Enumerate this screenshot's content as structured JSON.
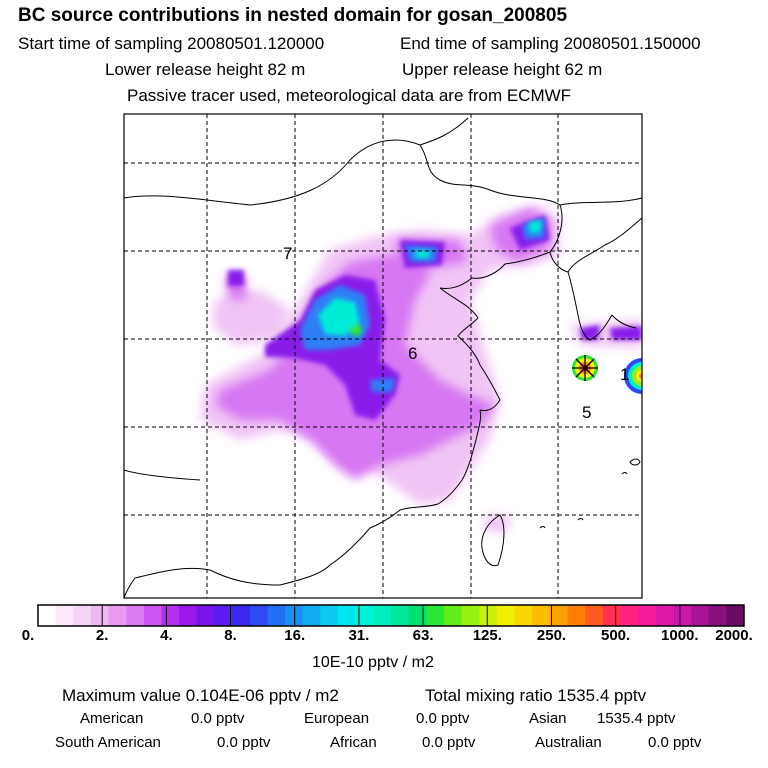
{
  "header": {
    "title": "BC  source contributions in nested domain for gosan_200805",
    "start_time": "Start time of sampling 20080501.120000",
    "end_time": "End time of sampling 20080501.150000",
    "lower_height": "Lower release height   82 m",
    "upper_height": "Upper release height   62 m",
    "tracer_note": "Passive tracer used, meteorological data are from ECMWF"
  },
  "map": {
    "contour_labels": [
      "7",
      "6",
      "5",
      "1"
    ],
    "receptor_marker": "gosan receptor site"
  },
  "colorbar": {
    "labels": [
      "0.",
      "2.",
      "4.",
      "8.",
      "16.",
      "31.",
      "63.",
      "125.",
      "250.",
      "500.",
      "1000.",
      "2000."
    ],
    "colors": [
      "#ffffff",
      "#fbe8fb",
      "#f6d4f6",
      "#f0b8f2",
      "#e99bf0",
      "#dc7cf2",
      "#cc55f2",
      "#b430ee",
      "#9a18ea",
      "#7a14ea",
      "#5a1af0",
      "#3a28f2",
      "#2f4af4",
      "#226ff4",
      "#1a8ff4",
      "#12adf2",
      "#0ccaf2",
      "#00e6f0",
      "#00f2d8",
      "#00eebe",
      "#00e69a",
      "#00e070",
      "#2ae636",
      "#62ec1a",
      "#98f010",
      "#c8f00a",
      "#f0f000",
      "#f8d800",
      "#fcbc00",
      "#fea000",
      "#ff8000",
      "#ff5a20",
      "#ff3050",
      "#ff2080",
      "#f41c9c",
      "#e018a8",
      "#c818a8",
      "#a81498",
      "#8a1080",
      "#6a0a60"
    ],
    "unit": "10E-10 pptv / m2"
  },
  "summary": {
    "max_value": "Maximum value  0.104E-06 pptv / m2",
    "total_mixing": "Total mixing ratio     1535.4 pptv"
  },
  "regions": [
    {
      "name": "American",
      "value": "0.0 pptv"
    },
    {
      "name": "European",
      "value": "0.0 pptv"
    },
    {
      "name": "Asian",
      "value": "1535.4 pptv"
    },
    {
      "name": "South American",
      "value": "0.0 pptv"
    },
    {
      "name": "African",
      "value": "0.0 pptv"
    },
    {
      "name": "Australian",
      "value": "0.0 pptv"
    }
  ]
}
